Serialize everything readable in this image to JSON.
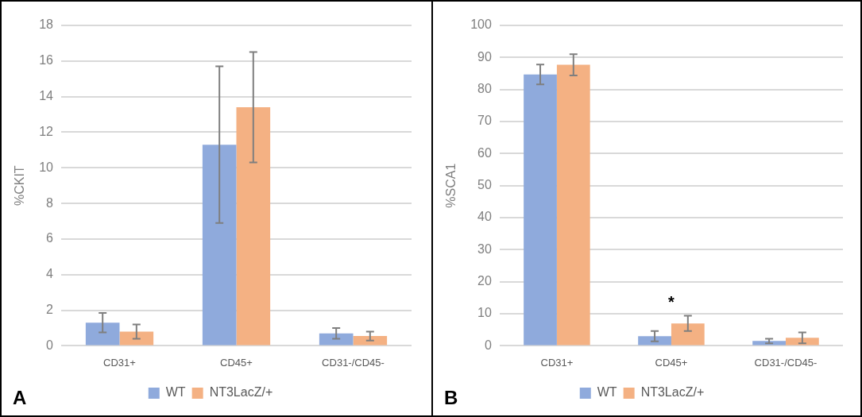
{
  "chart_data": [
    {
      "type": "bar",
      "ylabel": "%CKIT",
      "categories": [
        "CD31+",
        "CD45+",
        "CD31-/CD45-"
      ],
      "series": [
        {
          "name": "WT",
          "color": "#8faadc",
          "values": [
            1.3,
            11.3,
            0.7
          ],
          "errors": [
            0.55,
            4.4,
            0.3
          ]
        },
        {
          "name": "NT3LacZ/+",
          "color": "#f4b183",
          "values": [
            0.8,
            13.4,
            0.55
          ],
          "errors": [
            0.4,
            3.1,
            0.25
          ]
        }
      ],
      "ylim": [
        0,
        18
      ],
      "yticks": [
        0,
        2,
        4,
        6,
        8,
        10,
        12,
        14,
        16,
        18
      ],
      "grid": "y",
      "legend": "bottom",
      "annotations": [
        "A"
      ]
    },
    {
      "type": "bar",
      "ylabel": "%SCA1",
      "categories": [
        "CD31+",
        "CD45+",
        "CD31-/CD45-"
      ],
      "series": [
        {
          "name": "WT",
          "color": "#8faadc",
          "values": [
            84.7,
            3.0,
            1.5
          ],
          "errors": [
            3.1,
            1.6,
            0.7
          ]
        },
        {
          "name": "NT3LacZ/+",
          "color": "#f4b183",
          "values": [
            87.7,
            7.0,
            2.5
          ],
          "errors": [
            3.3,
            2.4,
            1.7
          ]
        }
      ],
      "ylim": [
        0,
        100
      ],
      "yticks": [
        0,
        10,
        20,
        30,
        40,
        50,
        60,
        70,
        80,
        90,
        100
      ],
      "grid": "y",
      "legend": "bottom",
      "annotations": [
        "B",
        "*"
      ]
    }
  ]
}
